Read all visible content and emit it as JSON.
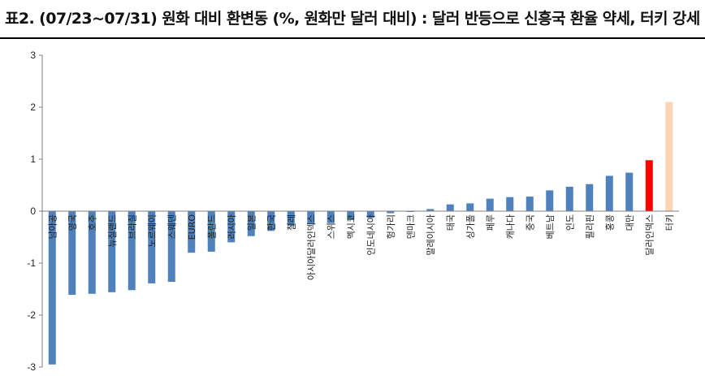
{
  "title": "표2. (07/23~07/31) 원화 대비 환변동 (%, 원화만 달러 대비) : 달러 반등으로 신흥국 환율 약세, 터키 강세",
  "colors": {
    "default": "#4f81bd",
    "dollar_index": "#ff0000",
    "turkey": "#fcd5b5",
    "axis": "#7f7f7f"
  },
  "chart_data": {
    "type": "bar",
    "title": "표2. (07/23~07/31) 원화 대비 환변동 (%, 원화만 달러 대비) : 달러 반등으로 신흥국 환율 약세, 터키 강세",
    "xlabel": "",
    "ylabel": "",
    "ylim": [
      -3,
      3
    ],
    "yticks": [
      -3,
      -2,
      -1,
      0,
      1,
      2,
      3
    ],
    "grid": false,
    "categories": [
      "남아공",
      "영국",
      "호주",
      "뉴질랜드",
      "브라질",
      "노르웨이",
      "스웨덴",
      "EURO",
      "폴란드",
      "러시아",
      "일본",
      "한국",
      "칠레",
      "아시아달러인덱스",
      "스위스",
      "멕시코",
      "인도네시아",
      "헝가리",
      "덴마크",
      "말레이시아",
      "태국",
      "싱가폴",
      "페루",
      "캐나다",
      "중국",
      "베트남",
      "인도",
      "필리핀",
      "홍콩",
      "대만",
      "달러인덱스",
      "터키"
    ],
    "values": [
      -2.95,
      -1.61,
      -1.59,
      -1.56,
      -1.52,
      -1.39,
      -1.36,
      -0.8,
      -0.78,
      -0.6,
      -0.48,
      -0.38,
      -0.28,
      -0.25,
      -0.23,
      -0.17,
      -0.13,
      -0.04,
      -0.01,
      0.04,
      0.13,
      0.15,
      0.24,
      0.27,
      0.28,
      0.4,
      0.47,
      0.52,
      0.68,
      0.74,
      0.98,
      2.1
    ],
    "bar_colors": [
      "#4f81bd",
      "#4f81bd",
      "#4f81bd",
      "#4f81bd",
      "#4f81bd",
      "#4f81bd",
      "#4f81bd",
      "#4f81bd",
      "#4f81bd",
      "#4f81bd",
      "#4f81bd",
      "#4f81bd",
      "#4f81bd",
      "#4f81bd",
      "#4f81bd",
      "#4f81bd",
      "#4f81bd",
      "#4f81bd",
      "#4f81bd",
      "#4f81bd",
      "#4f81bd",
      "#4f81bd",
      "#4f81bd",
      "#4f81bd",
      "#4f81bd",
      "#4f81bd",
      "#4f81bd",
      "#4f81bd",
      "#4f81bd",
      "#4f81bd",
      "#ff0000",
      "#fcd5b5"
    ]
  }
}
